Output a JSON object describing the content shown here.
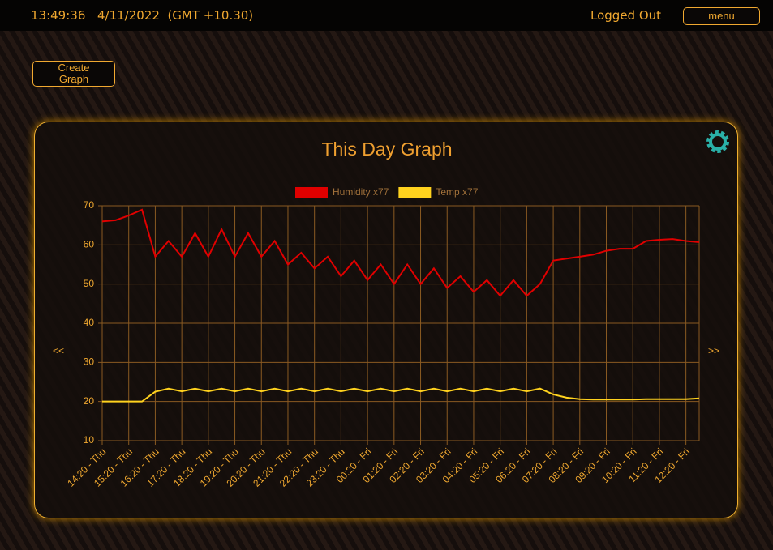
{
  "header": {
    "time": "13:49:36",
    "date": "4/11/2022  (GMT +10.30)",
    "status": "Logged Out",
    "menu": "menu"
  },
  "create_button": "Create Graph",
  "panel": {
    "title": "This Day Graph",
    "prev": "<<",
    "next": ">>"
  },
  "chart_data": {
    "type": "line",
    "categories": [
      "14:20 - Thu",
      "15:20 - Thu",
      "16:20 - Thu",
      "17:20 - Thu",
      "18:20 - Thu",
      "19:20 - Thu",
      "20:20 - Thu",
      "21:20 - Thu",
      "22:20 - Thu",
      "23:20 - Thu",
      "00:20 - Fri",
      "01:20 - Fri",
      "02:20 - Fri",
      "03:20 - Fri",
      "04:20 - Fri",
      "05:20 - Fri",
      "06:20 - Fri",
      "07:20 - Fri",
      "08:20 - Fri",
      "09:20 - Fri",
      "10:20 - Fri",
      "11:20 - Fri",
      "12:20 - Fri"
    ],
    "x": [
      0,
      0.5,
      1,
      1.5,
      2,
      2.5,
      3,
      3.5,
      4,
      4.5,
      5,
      5.5,
      6,
      6.5,
      7,
      7.5,
      8,
      8.5,
      9,
      9.5,
      10,
      10.5,
      11,
      11.5,
      12,
      12.5,
      13,
      13.5,
      14,
      14.5,
      15,
      15.5,
      16,
      16.5,
      17,
      17.5,
      18,
      18.5,
      19,
      19.5,
      20,
      20.5,
      21,
      21.5,
      22,
      22.5
    ],
    "xlim": [
      0,
      22.5
    ],
    "series": [
      {
        "name": "Humidity x77",
        "color": "#e00000",
        "values": [
          66,
          66.3,
          67.5,
          69,
          57,
          61,
          57,
          63,
          57,
          64,
          57,
          63,
          57,
          61,
          55,
          58,
          54,
          57,
          52,
          56,
          51,
          55,
          50,
          55,
          50,
          54,
          49,
          52,
          48,
          51,
          47,
          51,
          47,
          50,
          56,
          56.5,
          57,
          57.5,
          58.5,
          59,
          59,
          61,
          61.3,
          61.5,
          61,
          60.7
        ]
      },
      {
        "name": "Temp x77",
        "color": "#ffd21e",
        "values": [
          20,
          20,
          20,
          20,
          22.5,
          23.3,
          22.6,
          23.3,
          22.6,
          23.3,
          22.6,
          23.3,
          22.6,
          23.3,
          22.6,
          23.3,
          22.6,
          23.3,
          22.6,
          23.3,
          22.6,
          23.3,
          22.6,
          23.3,
          22.6,
          23.3,
          22.6,
          23.3,
          22.6,
          23.3,
          22.6,
          23.3,
          22.6,
          23.3,
          21.8,
          21,
          20.6,
          20.5,
          20.5,
          20.5,
          20.5,
          20.6,
          20.6,
          20.6,
          20.6,
          20.8
        ]
      }
    ],
    "ylim": [
      10,
      70
    ],
    "yticks": [
      10,
      20,
      30,
      40,
      50,
      60,
      70
    ],
    "grid": true
  }
}
